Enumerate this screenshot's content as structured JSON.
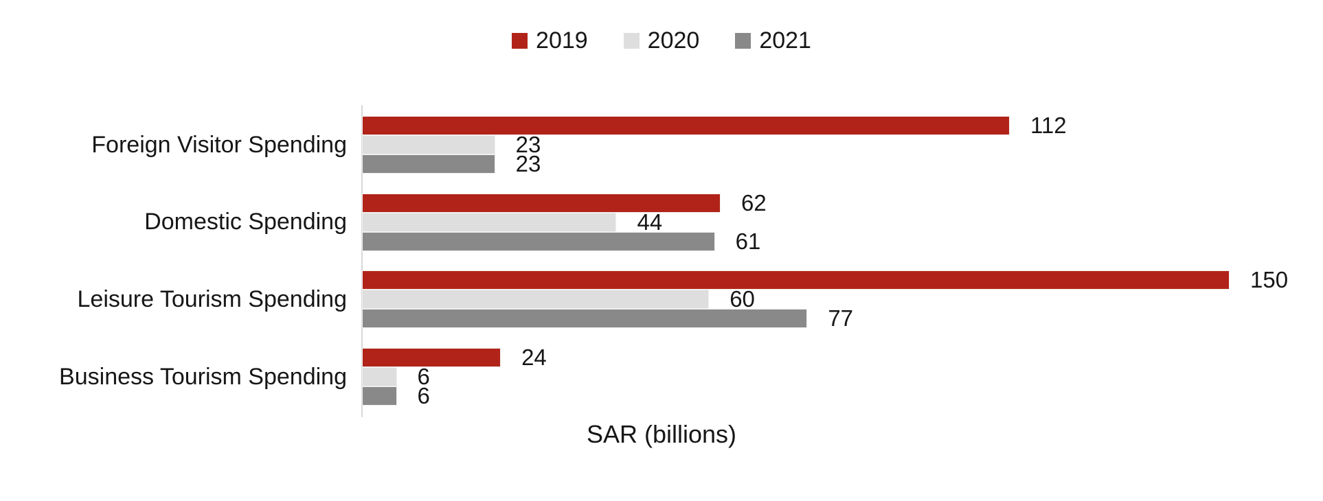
{
  "chart_data": {
    "type": "bar",
    "orientation": "horizontal",
    "title": "",
    "xlabel": "SAR (billions)",
    "ylabel": "",
    "categories": [
      "Foreign Visitor Spending",
      "Domestic Spending",
      "Leisure Tourism Spending",
      "Business Tourism Spending"
    ],
    "series": [
      {
        "name": "2019",
        "color": "#b12318",
        "values": [
          112,
          62,
          150,
          24
        ]
      },
      {
        "name": "2020",
        "color": "#dedede",
        "values": [
          23,
          44,
          60,
          6
        ]
      },
      {
        "name": "2021",
        "color": "#898989",
        "values": [
          23,
          61,
          77,
          6
        ]
      }
    ],
    "xlim": [
      0,
      160
    ],
    "grid": false,
    "data_labels": true,
    "legend_position": "top-center",
    "axis_line_color": "#d9d9d9",
    "text_color": "#161616",
    "background_color": "#ffffff"
  }
}
